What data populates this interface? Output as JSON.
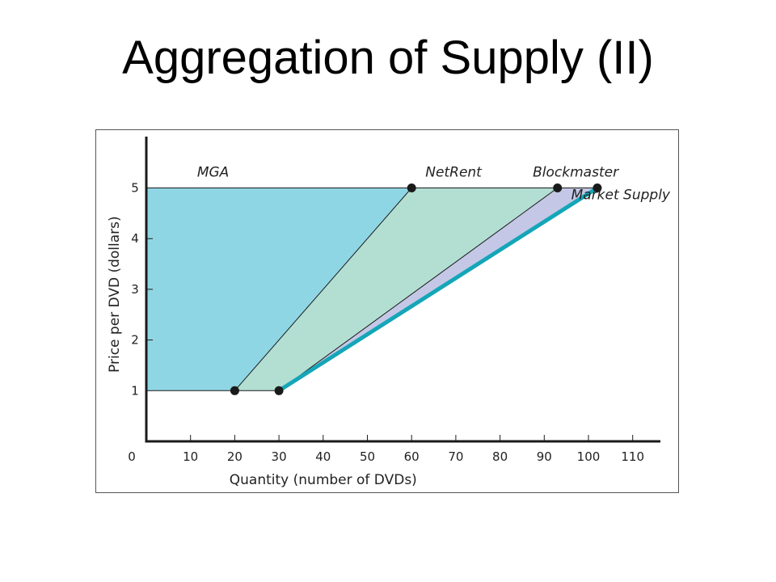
{
  "title": "Aggregation of Supply (II)",
  "colors": {
    "mga_fill": "#8fd6e5",
    "netrent_fill": "#b3dfd3",
    "blockmaster_fill": "#c4c8e6",
    "market_supply_line": "#14a6b8",
    "point": "#1a1a1a",
    "axis": "#1a1a1a"
  },
  "chart_data": {
    "type": "area",
    "xlabel": "Quantity (number of DVDs)",
    "ylabel": "Price per DVD (dollars)",
    "xlim": [
      0,
      115
    ],
    "ylim": [
      0,
      5.8
    ],
    "x_ticks": [
      0,
      10,
      20,
      30,
      40,
      50,
      60,
      70,
      80,
      90,
      100,
      110
    ],
    "y_ticks": [
      1,
      2,
      3,
      4,
      5
    ],
    "grid": false,
    "series": [
      {
        "name": "MGA",
        "x": [
          20,
          60
        ],
        "y": [
          1,
          5
        ]
      },
      {
        "name": "NetRent",
        "x": [
          30,
          93
        ],
        "y": [
          1,
          5
        ]
      },
      {
        "name": "Blockmaster",
        "x": [
          30,
          102
        ],
        "y": [
          1,
          5
        ]
      },
      {
        "name": "Market Supply",
        "x": [
          30,
          102
        ],
        "y": [
          1,
          5
        ]
      }
    ],
    "points": [
      {
        "x": 20,
        "y": 1
      },
      {
        "x": 30,
        "y": 1
      },
      {
        "x": 60,
        "y": 5
      },
      {
        "x": 93,
        "y": 5
      },
      {
        "x": 102,
        "y": 5
      }
    ],
    "annotations": [
      {
        "text": "MGA",
        "x": 14,
        "y": 5.22
      },
      {
        "text": "NetRent",
        "x": 64,
        "y": 5.22
      },
      {
        "text": "Blockmaster",
        "x": 96,
        "y": 5.22
      },
      {
        "text": "Market Supply",
        "x": 106,
        "y": 4.78
      }
    ]
  }
}
